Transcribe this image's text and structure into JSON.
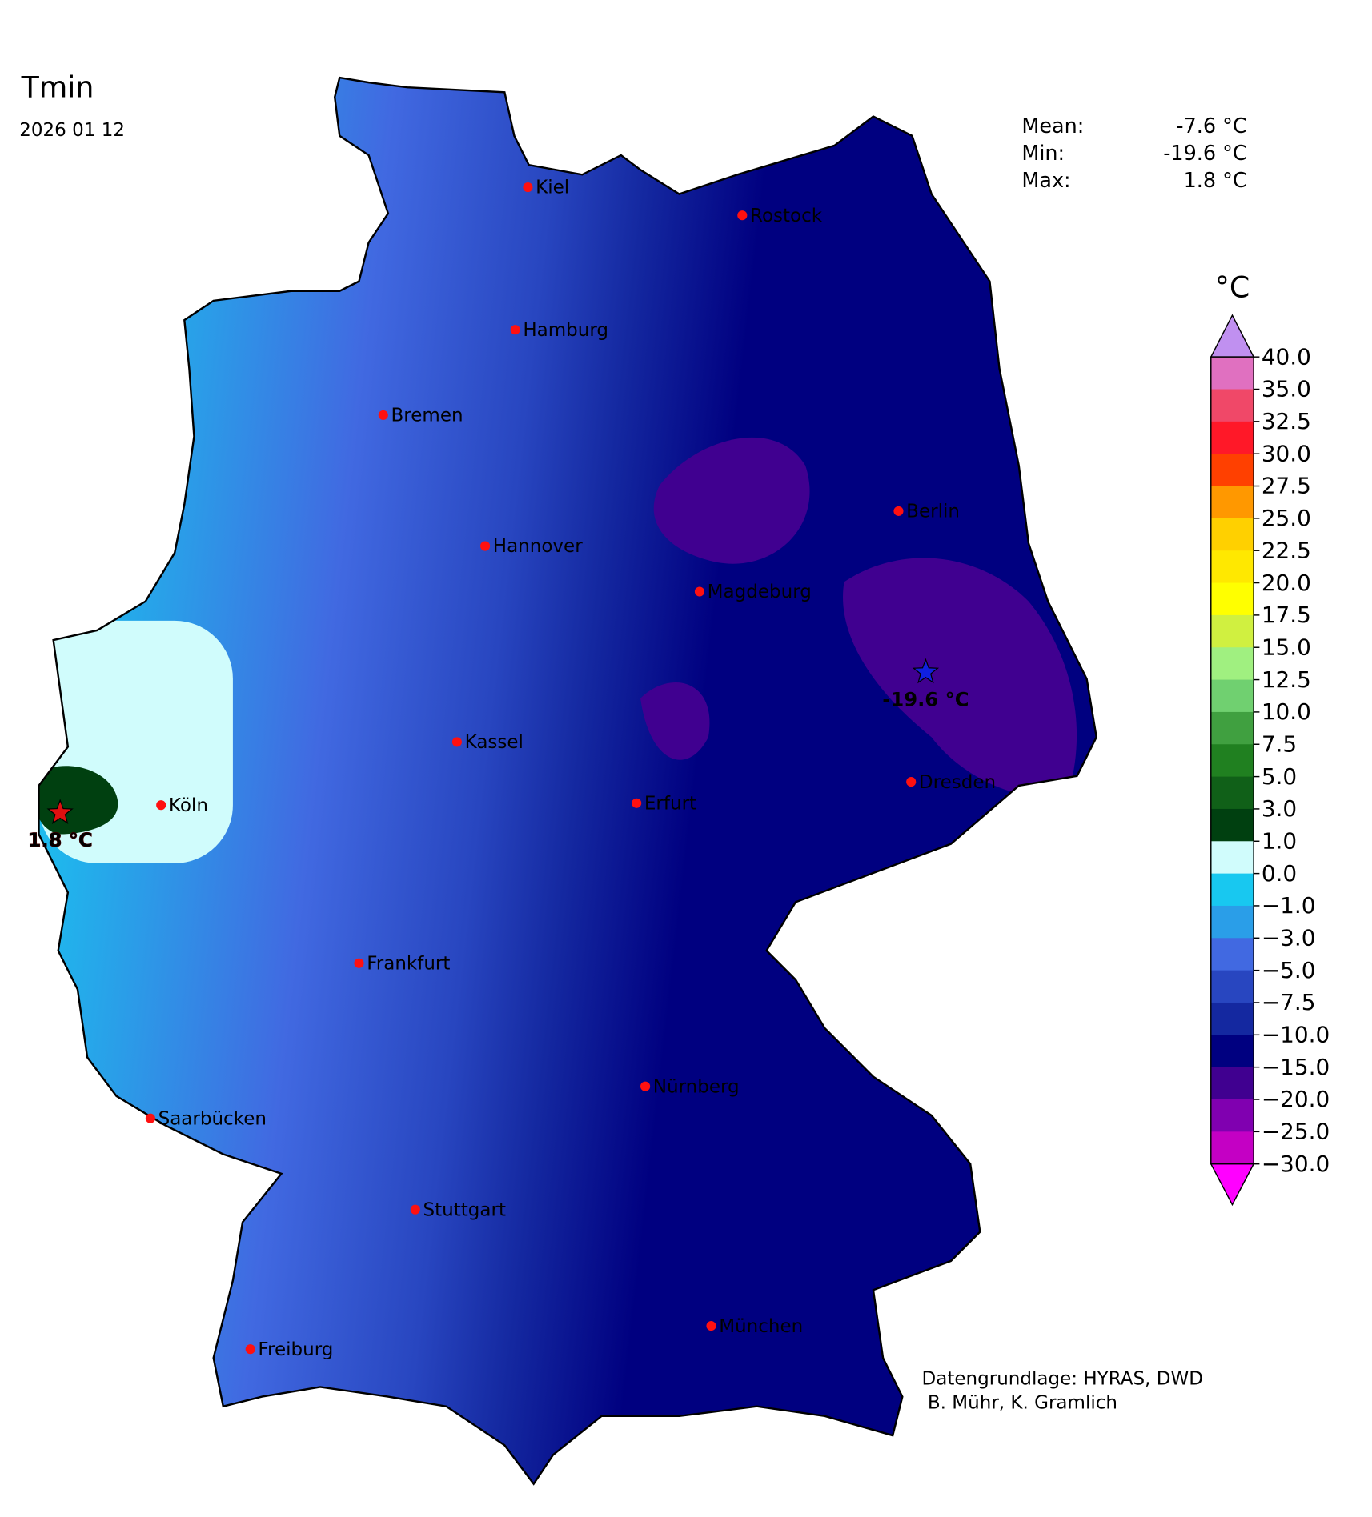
{
  "title": "Tmin",
  "date": "2026 01 12",
  "stats": {
    "labels": [
      "Mean:",
      "Min:",
      "Max:"
    ],
    "values": [
      -7.6,
      -19.6,
      1.8
    ],
    "value_labels": [
      "-7.6 °C",
      "-19.6 °C",
      "1.8 °C"
    ]
  },
  "colorbar": {
    "unit": "°C",
    "ticks": [
      {
        "value": 40,
        "label": "40.0"
      },
      {
        "value": 35,
        "label": "35.0"
      },
      {
        "value": 32.5,
        "label": "32.5"
      },
      {
        "value": 30,
        "label": "30.0"
      },
      {
        "value": 27.5,
        "label": "27.5"
      },
      {
        "value": 25,
        "label": "25.0"
      },
      {
        "value": 22.5,
        "label": "22.5"
      },
      {
        "value": 20,
        "label": "20.0"
      },
      {
        "value": 17.5,
        "label": "17.5"
      },
      {
        "value": 15,
        "label": "15.0"
      },
      {
        "value": 12.5,
        "label": "12.5"
      },
      {
        "value": 10,
        "label": "10.0"
      },
      {
        "value": 7.5,
        "label": "7.5"
      },
      {
        "value": 5,
        "label": "5.0"
      },
      {
        "value": 3,
        "label": "3.0"
      },
      {
        "value": 1,
        "label": "1.0"
      },
      {
        "value": 0,
        "label": "0.0"
      },
      {
        "value": -1,
        "label": "−1.0"
      },
      {
        "value": -3,
        "label": "−3.0"
      },
      {
        "value": -5,
        "label": "−5.0"
      },
      {
        "value": -7.5,
        "label": "−7.5"
      },
      {
        "value": -10,
        "label": "−10.0"
      },
      {
        "value": -15,
        "label": "−15.0"
      },
      {
        "value": -20,
        "label": "−20.0"
      },
      {
        "value": -25,
        "label": "−25.0"
      },
      {
        "value": -30,
        "label": "−30.0"
      }
    ],
    "bin_colors": [
      "#e070c0",
      "#f04868",
      "#ff1828",
      "#ff4000",
      "#ff9800",
      "#ffd000",
      "#ffe800",
      "#ffff00",
      "#d0f040",
      "#a0f080",
      "#70d070",
      "#40a040",
      "#208020",
      "#106018",
      "#004010",
      "#d0fcfc",
      "#18c8f0",
      "#2a9ee8",
      "#4169e1",
      "#2846c0",
      "#1428a0",
      "#000080",
      "#400090",
      "#8000b0",
      "#c400c4"
    ],
    "over_color": "#c090f0",
    "under_color": "#ff00ff"
  },
  "cities": [
    "Kiel",
    "Rostock",
    "Hamburg",
    "Bremen",
    "Hannover",
    "Berlin",
    "Magdeburg",
    "Kassel",
    "Köln",
    "Erfurt",
    "Dresden",
    "Frankfurt",
    "Nürnberg",
    "Saarbücken",
    "Stuttgart",
    "München",
    "Freiburg"
  ],
  "extremes": [
    {
      "value": 1.8,
      "label": "1.8 °C",
      "color": "#e01010"
    },
    {
      "value": -19.6,
      "label": "-19.6 °C",
      "color": "#1020e0"
    }
  ],
  "credits": [
    "Datengrundlage: HYRAS, DWD",
    " B. Mühr, K. Gramlich"
  ]
}
